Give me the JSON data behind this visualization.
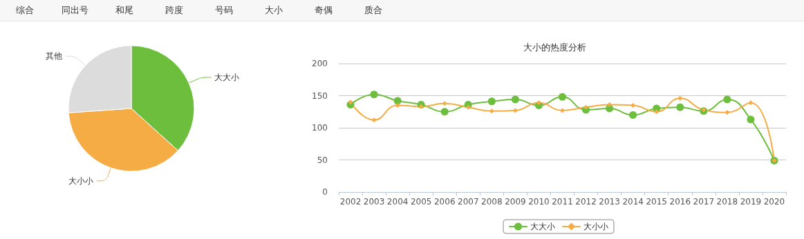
{
  "chart_data": [
    {
      "type": "other",
      "annotations": [
        "综合",
        "同出号",
        "和尾",
        "跨度",
        "号码",
        "大小",
        "奇偶",
        "质合"
      ]
    },
    {
      "type": "pie",
      "categories": [
        "大大小",
        "大小小",
        "其他"
      ],
      "values": [
        36.7,
        37.2,
        26.1
      ],
      "colors": [
        "#6dbe3d",
        "#f5ac45",
        "#dcdcdc"
      ],
      "legend": false
    },
    {
      "type": "line",
      "title": "大小的热度分析",
      "categories": [
        "2002",
        "2003",
        "2004",
        "2005",
        "2006",
        "2007",
        "2008",
        "2009",
        "2010",
        "2011",
        "2012",
        "2013",
        "2014",
        "2015",
        "2016",
        "2017",
        "2018",
        "2019",
        "2020"
      ],
      "series": [
        {
          "name": "大大小",
          "color": "#6dbe3d",
          "marker": "circle",
          "values": [
            136,
            152,
            142,
            136,
            125,
            136,
            141,
            144,
            135,
            148,
            128,
            130,
            120,
            130,
            132,
            126,
            144,
            113,
            49
          ]
        },
        {
          "name": "大小小",
          "color": "#f5ac45",
          "marker": "diamond",
          "values": [
            140,
            112,
            135,
            133,
            138,
            132,
            126,
            127,
            139,
            127,
            132,
            136,
            135,
            125,
            146,
            128,
            124,
            139,
            49
          ]
        }
      ],
      "ylim": [
        0,
        200
      ],
      "yticks": [
        0,
        50,
        100,
        150,
        200
      ],
      "grid": "y",
      "legend": "bottom",
      "line_style": "solid"
    }
  ]
}
